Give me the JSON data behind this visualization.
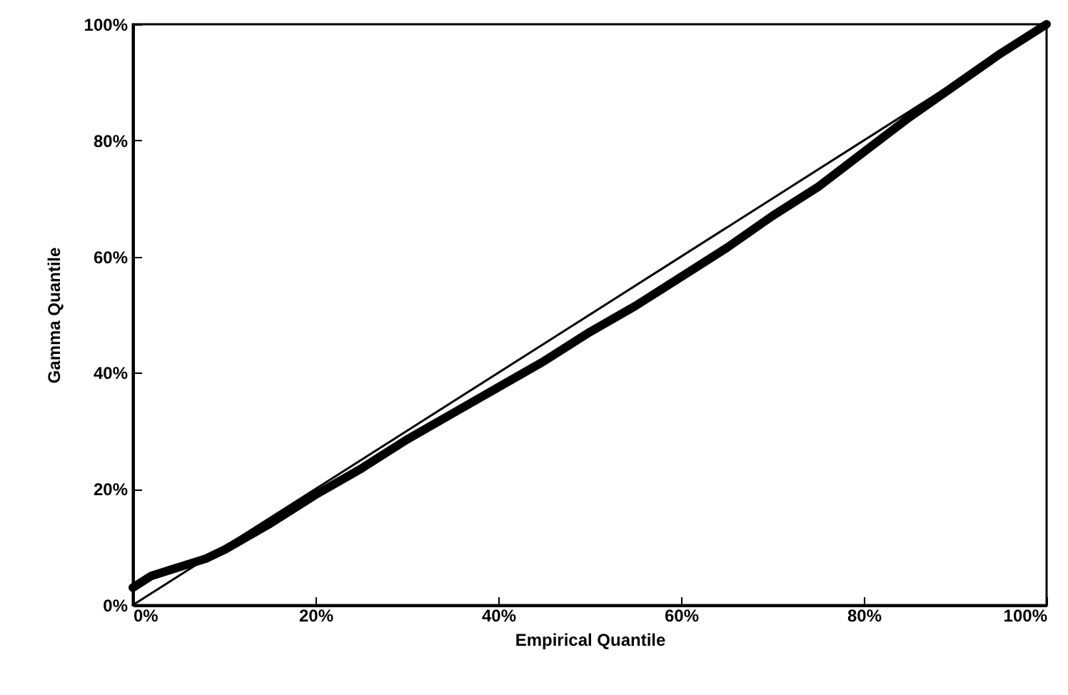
{
  "chart_data": {
    "type": "line",
    "xlabel": "Empirical Quantile",
    "ylabel": "Gamma Quantile",
    "xlim": [
      0,
      100
    ],
    "ylim": [
      0,
      100
    ],
    "xticks": [
      {
        "value": 0,
        "label": "0%"
      },
      {
        "value": 20,
        "label": "20%"
      },
      {
        "value": 40,
        "label": "40%"
      },
      {
        "value": 60,
        "label": "60%"
      },
      {
        "value": 80,
        "label": "80%"
      },
      {
        "value": 100,
        "label": "100%"
      }
    ],
    "yticks": [
      {
        "value": 0,
        "label": "0%"
      },
      {
        "value": 20,
        "label": "20%"
      },
      {
        "value": 40,
        "label": "40%"
      },
      {
        "value": 60,
        "label": "60%"
      },
      {
        "value": 80,
        "label": "80%"
      },
      {
        "value": 100,
        "label": "100%"
      }
    ],
    "grid": false,
    "marker": "none",
    "line_style": "solid",
    "series": [
      {
        "color": "#000000",
        "x": [
          0,
          100
        ],
        "values": [
          0,
          100
        ]
      },
      {
        "color": "#000000",
        "x": [
          0,
          2,
          5,
          8,
          10,
          15,
          20,
          25,
          30,
          35,
          40,
          45,
          50,
          55,
          60,
          65,
          70,
          75,
          80,
          85,
          90,
          95,
          100
        ],
        "values": [
          3,
          5,
          6.5,
          8,
          9.5,
          14,
          19,
          23.5,
          28.5,
          33,
          37.5,
          42,
          47,
          51.5,
          56.5,
          61.5,
          67,
          72,
          78,
          84,
          89.5,
          95,
          100
        ]
      }
    ]
  }
}
